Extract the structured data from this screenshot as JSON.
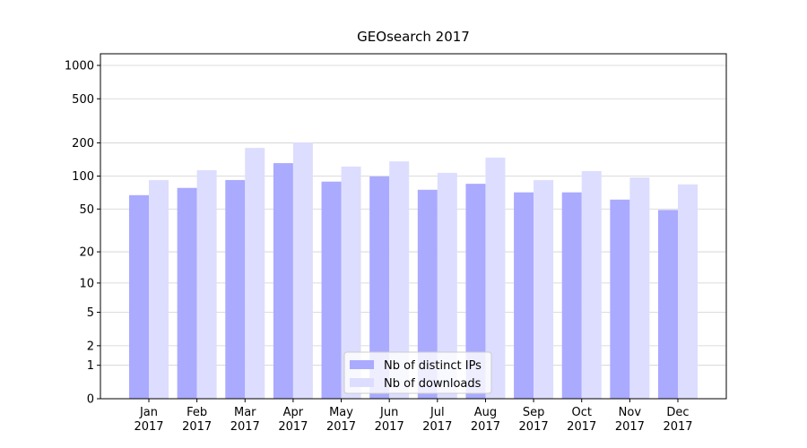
{
  "chart_data": {
    "type": "bar",
    "title": "GEOsearch 2017",
    "scale": "log1p",
    "categories": [
      "Jan\n2017",
      "Feb\n2017",
      "Mar\n2017",
      "Apr\n2017",
      "May\n2017",
      "Jun\n2017",
      "Jul\n2017",
      "Aug\n2017",
      "Sep\n2017",
      "Oct\n2017",
      "Nov\n2017",
      "Dec\n2017"
    ],
    "series": [
      {
        "name": "Nb of distinct IPs",
        "color": "#aaaaff",
        "values": [
          67,
          78,
          92,
          131,
          89,
          99,
          75,
          85,
          71,
          71,
          61,
          49
        ]
      },
      {
        "name": "Nb of downloads",
        "color": "#ddddff",
        "values": [
          92,
          113,
          180,
          201,
          122,
          136,
          107,
          147,
          92,
          111,
          97,
          84
        ]
      }
    ],
    "ylim": [
      0,
      1273
    ],
    "yticks": [
      0,
      1,
      2,
      5,
      10,
      20,
      50,
      100,
      200,
      500,
      1000
    ],
    "grid": true,
    "legend": "lower center"
  }
}
